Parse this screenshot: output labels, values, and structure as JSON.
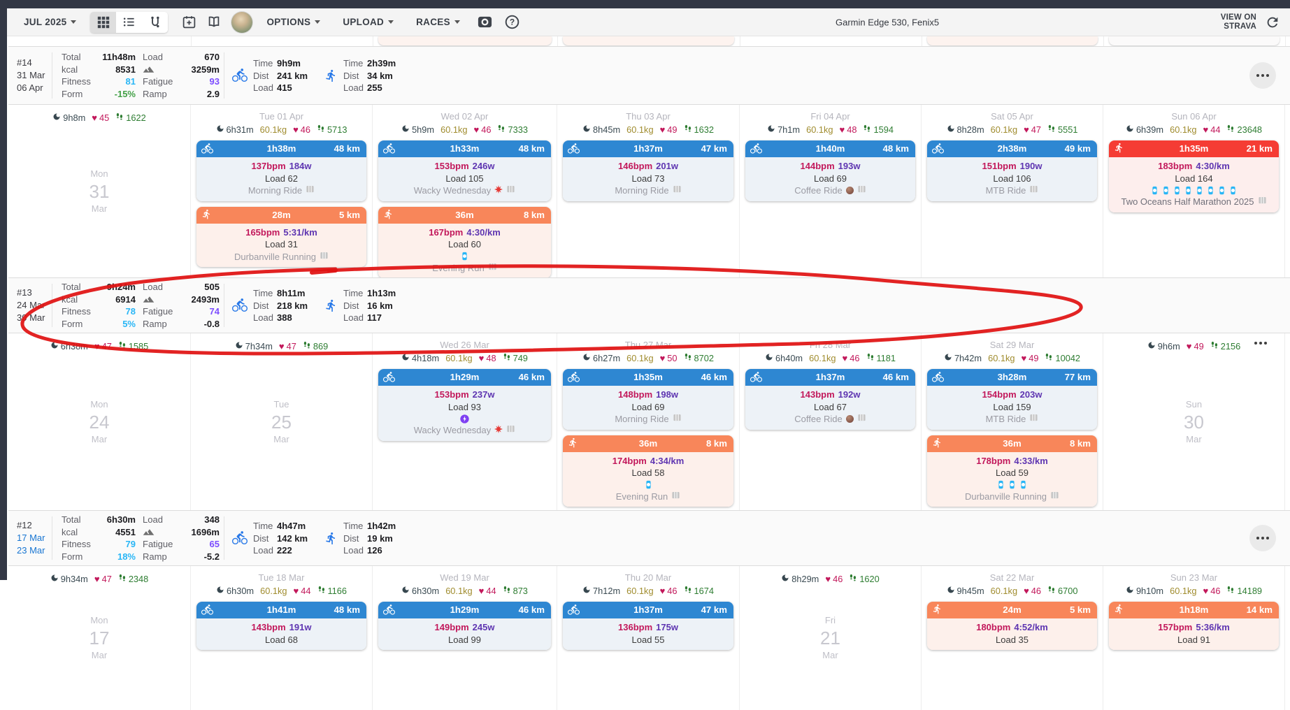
{
  "toolbar": {
    "month": "JUL 2025",
    "options": "OPTIONS",
    "upload": "UPLOAD",
    "races": "RACES",
    "devices": "Garmin Edge 530, Fenix5",
    "strava": "VIEW ON STRAVA"
  },
  "labels": {
    "total": "Total",
    "kcal": "kcal",
    "fitness": "Fitness",
    "form": "Form",
    "load": "Load",
    "fatigue": "Fatigue",
    "ramp": "Ramp",
    "time": "Time",
    "dist": "Dist"
  },
  "palette": {
    "fitness": "#29b6f6",
    "fatigue": "#7c4dff",
    "ride_header": "#2e87d2",
    "ride_body": "#edf2f7",
    "run_header": "#f8865a",
    "run_body": "#fdf0eb",
    "race_header": "#f53c34",
    "race_body": "#fdeeed",
    "annotation": "#e01212"
  },
  "partial_row": {
    "columns": [
      2,
      3,
      5,
      6
    ]
  },
  "annotation": {
    "description": "hand-drawn red circle around week 13 summary row",
    "color": "#e01212"
  },
  "weeks": [
    {
      "num": "#14",
      "start": "31 Mar",
      "end": "06 Apr",
      "menu": "circle",
      "summary": {
        "total": "11h48m",
        "load": "670",
        "kcal": "8531",
        "elev": "3259m",
        "fitness": "81",
        "fatigue": "93",
        "form": "-15%",
        "form_color": "#43a047",
        "ramp": "2.9"
      },
      "bike": {
        "time": "9h9m",
        "dist": "241 km",
        "load": "415"
      },
      "run": {
        "time": "2h39m",
        "dist": "34 km",
        "load": "255"
      },
      "days": [
        {
          "stats": {
            "sleep": "9h8m",
            "hr": "45",
            "steps": "1622"
          },
          "ph": {
            "dow": "Mon",
            "num": "31",
            "mon": "Mar"
          },
          "cards": []
        },
        {
          "header": "Tue 01 Apr",
          "stats": {
            "sleep": "6h31m",
            "weight": "60.1kg",
            "hr": "46",
            "steps": "5713"
          },
          "cards": [
            {
              "kind": "ride",
              "dur": "1h38m",
              "dist": "48 km",
              "hr": "137bpm",
              "metric": "184w",
              "load": "Load 62",
              "name": "Morning Ride"
            },
            {
              "kind": "run",
              "dur": "28m",
              "dist": "5 km",
              "hr": "165bpm",
              "metric": "5:31/km",
              "load": "Load 31",
              "name": "Durbanville Running"
            }
          ]
        },
        {
          "header": "Wed 02 Apr",
          "stats": {
            "sleep": "5h9m",
            "weight": "60.1kg",
            "hr": "46",
            "steps": "7333"
          },
          "cards": [
            {
              "kind": "ride",
              "dur": "1h33m",
              "dist": "48 km",
              "hr": "153bpm",
              "metric": "246w",
              "load": "Load 105",
              "name": "Wacky Wednesday",
              "emoji": "burst"
            },
            {
              "kind": "run",
              "dur": "36m",
              "dist": "8 km",
              "hr": "167bpm",
              "metric": "4:30/km",
              "load": "Load 60",
              "badge": "watch",
              "badge_count": 1,
              "name": "Evening Run"
            }
          ]
        },
        {
          "header": "Thu 03 Apr",
          "stats": {
            "sleep": "8h45m",
            "weight": "60.1kg",
            "hr": "49",
            "steps": "1632"
          },
          "cards": [
            {
              "kind": "ride",
              "dur": "1h37m",
              "dist": "47 km",
              "hr": "146bpm",
              "metric": "201w",
              "load": "Load 73",
              "name": "Morning Ride"
            }
          ]
        },
        {
          "header": "Fri 04 Apr",
          "stats": {
            "sleep": "7h1m",
            "weight": "60.1kg",
            "hr": "48",
            "steps": "1594"
          },
          "cards": [
            {
              "kind": "ride",
              "dur": "1h40m",
              "dist": "48 km",
              "hr": "144bpm",
              "metric": "193w",
              "load": "Load 69",
              "name": "Coffee Ride",
              "emoji": "coffee"
            }
          ]
        },
        {
          "header": "Sat 05 Apr",
          "stats": {
            "sleep": "8h28m",
            "weight": "60.1kg",
            "hr": "47",
            "steps": "5551"
          },
          "cards": [
            {
              "kind": "ride",
              "dur": "2h38m",
              "dist": "49 km",
              "hr": "151bpm",
              "metric": "190w",
              "load": "Load 106",
              "name": "MTB Ride"
            }
          ]
        },
        {
          "header": "Sun 06 Apr",
          "stats": {
            "sleep": "6h39m",
            "weight": "60.1kg",
            "hr": "44",
            "steps": "23648"
          },
          "cards": [
            {
              "kind": "race",
              "dur": "1h35m",
              "dist": "21 km",
              "hr": "183bpm",
              "metric": "4:30/km",
              "load": "Load 164",
              "badge": "watch",
              "badge_count": 8,
              "name": "Two Oceans Half Marathon 2025"
            }
          ]
        }
      ]
    },
    {
      "num": "#13",
      "start": "24 Mar",
      "end": "30 Mar",
      "menu": "plain",
      "summary": {
        "total": "9h24m",
        "load": "505",
        "kcal": "6914",
        "elev": "2493m",
        "fitness": "78",
        "fatigue": "74",
        "form": "5%",
        "form_color": "#29b6f6",
        "ramp": "-0.8"
      },
      "bike": {
        "time": "8h11m",
        "dist": "218 km",
        "load": "388"
      },
      "run": {
        "time": "1h13m",
        "dist": "16 km",
        "load": "117"
      },
      "days": [
        {
          "stats": {
            "sleep": "6h38m",
            "hr": "47",
            "steps": "1585"
          },
          "ph": {
            "dow": "Mon",
            "num": "24",
            "mon": "Mar"
          },
          "cards": []
        },
        {
          "stats": {
            "sleep": "7h34m",
            "hr": "47",
            "steps": "869"
          },
          "ph": {
            "dow": "Tue",
            "num": "25",
            "mon": "Mar"
          },
          "cards": []
        },
        {
          "header": "Wed 26 Mar",
          "stats": {
            "sleep": "4h18m",
            "weight": "60.1kg",
            "hr": "48",
            "steps": "749"
          },
          "cards": [
            {
              "kind": "ride",
              "dur": "1h29m",
              "dist": "46 km",
              "hr": "153bpm",
              "metric": "237w",
              "load": "Load 93",
              "badge": "bolt",
              "badge_count": 1,
              "name": "Wacky Wednesday",
              "emoji": "burst"
            }
          ]
        },
        {
          "header": "Thu 27 Mar",
          "stats": {
            "sleep": "6h27m",
            "weight": "60.1kg",
            "hr": "50",
            "steps": "8702"
          },
          "cards": [
            {
              "kind": "ride",
              "dur": "1h35m",
              "dist": "46 km",
              "hr": "148bpm",
              "metric": "198w",
              "load": "Load 69",
              "name": "Morning Ride"
            },
            {
              "kind": "run",
              "dur": "36m",
              "dist": "8 km",
              "hr": "174bpm",
              "metric": "4:34/km",
              "load": "Load 58",
              "badge": "watch",
              "badge_count": 1,
              "name": "Evening Run"
            }
          ]
        },
        {
          "header": "Fri 28 Mar",
          "stats": {
            "sleep": "6h40m",
            "weight": "60.1kg",
            "hr": "46",
            "steps": "1181"
          },
          "cards": [
            {
              "kind": "ride",
              "dur": "1h37m",
              "dist": "46 km",
              "hr": "143bpm",
              "metric": "192w",
              "load": "Load 67",
              "name": "Coffee Ride",
              "emoji": "coffee"
            }
          ]
        },
        {
          "header": "Sat 29 Mar",
          "stats": {
            "sleep": "7h42m",
            "weight": "60.1kg",
            "hr": "49",
            "steps": "10042"
          },
          "cards": [
            {
              "kind": "ride",
              "dur": "3h28m",
              "dist": "77 km",
              "hr": "154bpm",
              "metric": "203w",
              "load": "Load 159",
              "name": "MTB Ride"
            },
            {
              "kind": "run",
              "dur": "36m",
              "dist": "8 km",
              "hr": "178bpm",
              "metric": "4:33/km",
              "load": "Load 59",
              "badge": "watch",
              "badge_count": 3,
              "name": "Durbanville Running"
            }
          ]
        },
        {
          "stats": {
            "sleep": "9h6m",
            "hr": "49",
            "steps": "2156"
          },
          "ph": {
            "dow": "Sun",
            "num": "30",
            "mon": "Mar"
          },
          "cards": []
        }
      ]
    },
    {
      "num": "#12",
      "start": "17 Mar",
      "end": "23 Mar",
      "dates_color": "#1976d2",
      "menu": "circle",
      "summary": {
        "total": "6h30m",
        "load": "348",
        "kcal": "4551",
        "elev": "1696m",
        "fitness": "79",
        "fatigue": "65",
        "form": "18%",
        "form_color": "#29b6f6",
        "ramp": "-5.2"
      },
      "bike": {
        "time": "4h47m",
        "dist": "142 km",
        "load": "222"
      },
      "run": {
        "time": "1h42m",
        "dist": "19 km",
        "load": "126"
      },
      "days": [
        {
          "stats": {
            "sleep": "9h34m",
            "hr": "47",
            "steps": "2348"
          },
          "ph": {
            "dow": "Mon",
            "num": "17",
            "mon": "Mar"
          },
          "cards": []
        },
        {
          "header": "Tue 18 Mar",
          "stats": {
            "sleep": "6h30m",
            "weight": "60.1kg",
            "hr": "44",
            "steps": "1166"
          },
          "cards": [
            {
              "kind": "ride",
              "dur": "1h41m",
              "dist": "48 km",
              "hr": "143bpm",
              "metric": "191w",
              "load": "Load 68"
            }
          ]
        },
        {
          "header": "Wed 19 Mar",
          "stats": {
            "sleep": "6h30m",
            "weight": "60.1kg",
            "hr": "44",
            "steps": "873"
          },
          "cards": [
            {
              "kind": "ride",
              "dur": "1h29m",
              "dist": "46 km",
              "hr": "149bpm",
              "metric": "245w",
              "load": "Load 99"
            }
          ]
        },
        {
          "header": "Thu 20 Mar",
          "stats": {
            "sleep": "7h12m",
            "weight": "60.1kg",
            "hr": "46",
            "steps": "1674"
          },
          "cards": [
            {
              "kind": "ride",
              "dur": "1h37m",
              "dist": "47 km",
              "hr": "136bpm",
              "metric": "175w",
              "load": "Load 55"
            }
          ]
        },
        {
          "stats": {
            "sleep": "8h29m",
            "hr": "46",
            "steps": "1620"
          },
          "ph": {
            "dow": "Fri",
            "num": "21",
            "mon": "Mar"
          },
          "cards": []
        },
        {
          "header": "Sat 22 Mar",
          "stats": {
            "sleep": "9h45m",
            "weight": "60.1kg",
            "hr": "46",
            "steps": "6700"
          },
          "cards": [
            {
              "kind": "run",
              "dur": "24m",
              "dist": "5 km",
              "hr": "180bpm",
              "metric": "4:52/km",
              "load": "Load 35"
            }
          ]
        },
        {
          "header": "Sun 23 Mar",
          "stats": {
            "sleep": "9h10m",
            "weight": "60.1kg",
            "hr": "46",
            "steps": "14189"
          },
          "cards": [
            {
              "kind": "run",
              "dur": "1h18m",
              "dist": "14 km",
              "hr": "157bpm",
              "metric": "5:36/km",
              "load": "Load 91"
            }
          ]
        }
      ]
    }
  ]
}
